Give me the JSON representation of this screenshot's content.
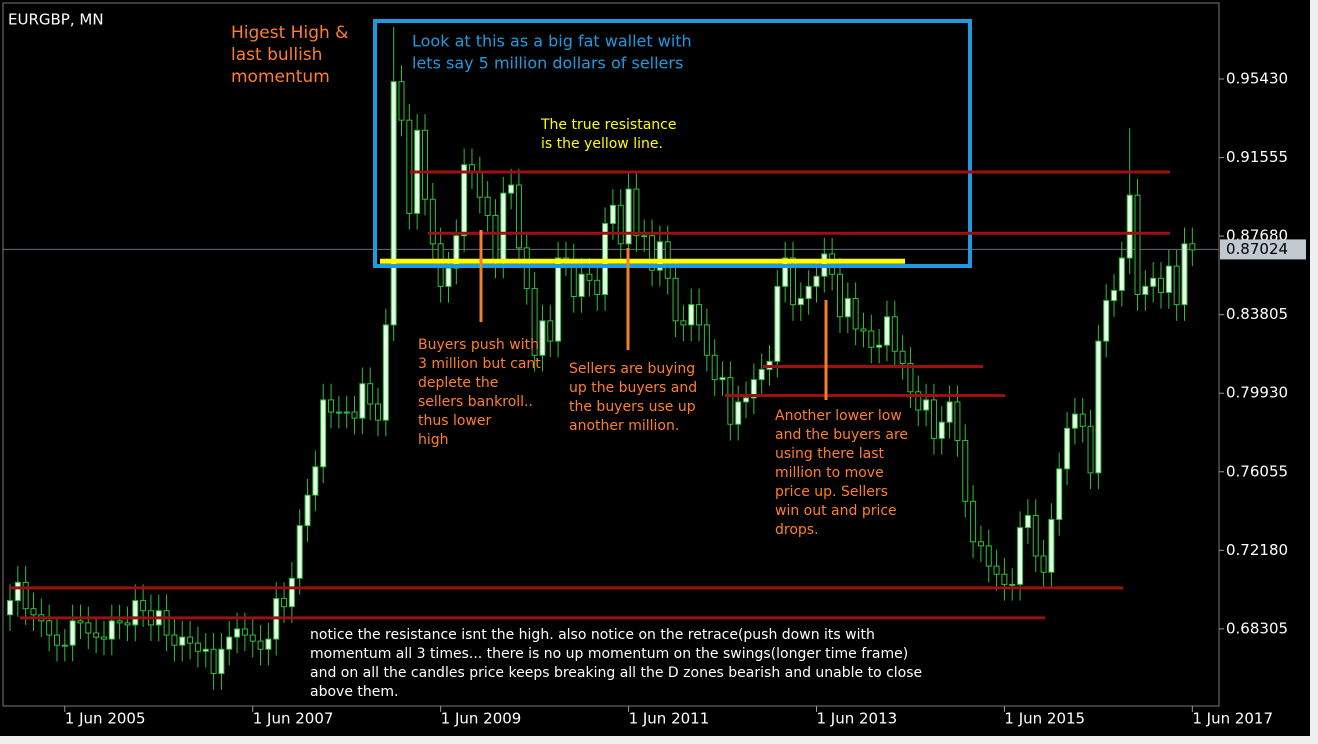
{
  "chart_data": {
    "type": "candlestick",
    "title": "EURGBP, MN",
    "x": [
      "1 Nov 2004",
      "1 Dec 2004",
      "1 Jan 2005",
      "1 Feb 2005",
      "1 Mar 2005",
      "1 Apr 2005",
      "1 May 2005",
      "1 Jun 2005",
      "1 Jul 2005",
      "1 Aug 2005",
      "1 Sep 2005",
      "1 Oct 2005",
      "1 Nov 2005",
      "1 Dec 2005",
      "1 Jan 2006",
      "1 Feb 2006",
      "1 Mar 2006",
      "1 Apr 2006",
      "1 May 2006",
      "1 Jun 2006",
      "1 Jul 2006",
      "1 Aug 2006",
      "1 Sep 2006",
      "1 Oct 2006",
      "1 Nov 2006",
      "1 Dec 2006",
      "1 Jan 2007",
      "1 Feb 2007",
      "1 Mar 2007",
      "1 Apr 2007",
      "1 May 2007",
      "1 Jun 2007",
      "1 Jul 2007",
      "1 Aug 2007",
      "1 Sep 2007",
      "1 Oct 2007",
      "1 Nov 2007",
      "1 Dec 2007",
      "1 Jan 2008",
      "1 Feb 2008",
      "1 Mar 2008",
      "1 Apr 2008",
      "1 May 2008",
      "1 Jun 2008",
      "1 Jul 2008",
      "1 Aug 2008",
      "1 Sep 2008",
      "1 Oct 2008",
      "1 Nov 2008",
      "1 Dec 2008",
      "1 Jan 2009",
      "1 Feb 2009",
      "1 Mar 2009",
      "1 Apr 2009",
      "1 May 2009",
      "1 Jun 2009",
      "1 Jul 2009",
      "1 Aug 2009",
      "1 Sep 2009",
      "1 Oct 2009",
      "1 Nov 2009",
      "1 Dec 2009",
      "1 Jan 2010",
      "1 Feb 2010",
      "1 Mar 2010",
      "1 Apr 2010",
      "1 May 2010",
      "1 Jun 2010",
      "1 Jul 2010",
      "1 Aug 2010",
      "1 Sep 2010",
      "1 Oct 2010",
      "1 Nov 2010",
      "1 Dec 2010",
      "1 Jan 2011",
      "1 Feb 2011",
      "1 Mar 2011",
      "1 Apr 2011",
      "1 May 2011",
      "1 Jun 2011",
      "1 Jul 2011",
      "1 Aug 2011",
      "1 Sep 2011",
      "1 Oct 2011",
      "1 Nov 2011",
      "1 Dec 2011",
      "1 Jan 2012",
      "1 Feb 2012",
      "1 Mar 2012",
      "1 Apr 2012",
      "1 May 2012",
      "1 Jun 2012",
      "1 Jul 2012",
      "1 Aug 2012",
      "1 Sep 2012",
      "1 Oct 2012",
      "1 Nov 2012",
      "1 Dec 2012",
      "1 Jan 2013",
      "1 Feb 2013",
      "1 Mar 2013",
      "1 Apr 2013",
      "1 May 2013",
      "1 Jun 2013",
      "1 Jul 2013",
      "1 Aug 2013",
      "1 Sep 2013",
      "1 Oct 2013",
      "1 Nov 2013",
      "1 Dec 2013",
      "1 Jan 2014",
      "1 Feb 2014",
      "1 Mar 2014",
      "1 Apr 2014",
      "1 May 2014",
      "1 Jun 2014",
      "1 Jul 2014",
      "1 Aug 2014",
      "1 Sep 2014",
      "1 Oct 2014",
      "1 Nov 2014",
      "1 Dec 2014",
      "1 Jan 2015",
      "1 Feb 2015",
      "1 Mar 2015",
      "1 Apr 2015",
      "1 May 2015",
      "1 Jun 2015",
      "1 Jul 2015",
      "1 Aug 2015",
      "1 Sep 2015",
      "1 Oct 2015",
      "1 Nov 2015",
      "1 Dec 2015",
      "1 Jan 2016",
      "1 Feb 2016",
      "1 Mar 2016",
      "1 Apr 2016",
      "1 May 2016",
      "1 Jun 2016",
      "1 Jul 2016",
      "1 Aug 2016",
      "1 Sep 2016",
      "1 Oct 2016",
      "1 Nov 2016",
      "1 Dec 2016",
      "1 Jan 2017",
      "1 Feb 2017",
      "1 Mar 2017",
      "1 Apr 2017",
      "1 May 2017",
      "1 Jun 2017"
    ],
    "open": [
      0.69,
      0.697,
      0.706,
      0.693,
      0.69,
      0.687,
      0.68,
      0.675,
      0.675,
      0.687,
      0.686,
      0.681,
      0.679,
      0.678,
      0.687,
      0.686,
      0.685,
      0.697,
      0.692,
      0.685,
      0.692,
      0.68,
      0.675,
      0.679,
      0.676,
      0.672,
      0.673,
      0.661,
      0.673,
      0.679,
      0.683,
      0.68,
      0.677,
      0.673,
      0.678,
      0.698,
      0.694,
      0.708,
      0.734,
      0.749,
      0.763,
      0.796,
      0.79,
      0.79,
      0.79,
      0.787,
      0.804,
      0.794,
      0.786,
      0.833,
      0.953,
      0.934,
      0.888,
      0.929,
      0.895,
      0.873,
      0.852,
      0.861,
      0.877,
      0.912,
      0.908,
      0.896,
      0.887,
      0.864,
      0.898,
      0.902,
      0.871,
      0.851,
      0.818,
      0.835,
      0.825,
      0.866,
      0.865,
      0.847,
      0.858,
      0.855,
      0.848,
      0.883,
      0.892,
      0.873,
      0.9,
      0.877,
      0.877,
      0.86,
      0.874,
      0.856,
      0.835,
      0.833,
      0.843,
      0.833,
      0.818,
      0.806,
      0.807,
      0.784,
      0.795,
      0.797,
      0.806,
      0.811,
      0.815,
      0.852,
      0.866,
      0.843,
      0.846,
      0.852,
      0.857,
      0.868,
      0.858,
      0.837,
      0.846,
      0.831,
      0.83,
      0.822,
      0.823,
      0.837,
      0.82,
      0.814,
      0.8,
      0.791,
      0.796,
      0.777,
      0.785,
      0.795,
      0.776,
      0.746,
      0.726,
      0.724,
      0.714,
      0.71,
      0.705,
      0.705,
      0.733,
      0.739,
      0.719,
      0.711,
      0.737,
      0.762,
      0.782,
      0.789,
      0.783,
      0.76,
      0.825,
      0.845,
      0.85,
      0.866,
      0.897,
      0.848,
      0.852,
      0.856,
      0.849,
      0.862,
      0.843,
      0.873
    ],
    "high": [
      0.705,
      0.714,
      0.714,
      0.701,
      0.698,
      0.695,
      0.688,
      0.683,
      0.695,
      0.695,
      0.694,
      0.689,
      0.687,
      0.695,
      0.695,
      0.694,
      0.705,
      0.705,
      0.7,
      0.7,
      0.7,
      0.688,
      0.687,
      0.687,
      0.684,
      0.681,
      0.681,
      0.681,
      0.687,
      0.691,
      0.691,
      0.688,
      0.685,
      0.686,
      0.706,
      0.706,
      0.716,
      0.742,
      0.757,
      0.771,
      0.804,
      0.804,
      0.798,
      0.798,
      0.798,
      0.812,
      0.812,
      0.802,
      0.841,
      0.98,
      0.961,
      0.942,
      0.937,
      0.937,
      0.903,
      0.881,
      0.869,
      0.885,
      0.92,
      0.92,
      0.916,
      0.904,
      0.895,
      0.906,
      0.91,
      0.91,
      0.879,
      0.859,
      0.843,
      0.843,
      0.874,
      0.874,
      0.873,
      0.866,
      0.866,
      0.863,
      0.891,
      0.9,
      0.9,
      0.908,
      0.908,
      0.885,
      0.885,
      0.882,
      0.882,
      0.864,
      0.843,
      0.851,
      0.851,
      0.841,
      0.826,
      0.815,
      0.815,
      0.803,
      0.805,
      0.814,
      0.819,
      0.823,
      0.86,
      0.874,
      0.874,
      0.854,
      0.86,
      0.865,
      0.876,
      0.876,
      0.866,
      0.854,
      0.854,
      0.839,
      0.838,
      0.831,
      0.845,
      0.845,
      0.828,
      0.822,
      0.808,
      0.804,
      0.804,
      0.793,
      0.803,
      0.803,
      0.784,
      0.754,
      0.734,
      0.732,
      0.722,
      0.718,
      0.713,
      0.741,
      0.747,
      0.747,
      0.727,
      0.745,
      0.77,
      0.79,
      0.797,
      0.797,
      0.791,
      0.833,
      0.853,
      0.858,
      0.874,
      0.93,
      0.905,
      0.86,
      0.864,
      0.864,
      0.87,
      0.87,
      0.881,
      0.881
    ],
    "low": [
      0.682,
      0.689,
      0.685,
      0.682,
      0.679,
      0.672,
      0.667,
      0.667,
      0.667,
      0.678,
      0.673,
      0.671,
      0.67,
      0.67,
      0.678,
      0.677,
      0.677,
      0.684,
      0.677,
      0.677,
      0.672,
      0.667,
      0.667,
      0.668,
      0.664,
      0.664,
      0.653,
      0.653,
      0.665,
      0.671,
      0.672,
      0.669,
      0.665,
      0.665,
      0.67,
      0.686,
      0.686,
      0.7,
      0.726,
      0.741,
      0.755,
      0.782,
      0.782,
      0.782,
      0.779,
      0.779,
      0.786,
      0.778,
      0.778,
      0.825,
      0.926,
      0.88,
      0.88,
      0.887,
      0.865,
      0.844,
      0.844,
      0.853,
      0.869,
      0.9,
      0.888,
      0.879,
      0.856,
      0.856,
      0.89,
      0.863,
      0.843,
      0.81,
      0.81,
      0.817,
      0.817,
      0.857,
      0.839,
      0.839,
      0.847,
      0.84,
      0.84,
      0.875,
      0.865,
      0.865,
      0.869,
      0.869,
      0.852,
      0.852,
      0.848,
      0.827,
      0.825,
      0.825,
      0.825,
      0.81,
      0.798,
      0.798,
      0.776,
      0.776,
      0.787,
      0.789,
      0.798,
      0.803,
      0.807,
      0.844,
      0.835,
      0.835,
      0.838,
      0.844,
      0.849,
      0.85,
      0.829,
      0.829,
      0.823,
      0.822,
      0.814,
      0.814,
      0.815,
      0.812,
      0.806,
      0.792,
      0.783,
      0.783,
      0.769,
      0.769,
      0.777,
      0.768,
      0.738,
      0.718,
      0.716,
      0.706,
      0.702,
      0.697,
      0.697,
      0.697,
      0.725,
      0.711,
      0.703,
      0.703,
      0.729,
      0.754,
      0.774,
      0.775,
      0.752,
      0.752,
      0.817,
      0.837,
      0.842,
      0.858,
      0.84,
      0.84,
      0.844,
      0.841,
      0.841,
      0.835,
      0.835,
      0.862
    ],
    "close": [
      0.697,
      0.706,
      0.693,
      0.69,
      0.687,
      0.68,
      0.675,
      0.675,
      0.687,
      0.686,
      0.681,
      0.679,
      0.678,
      0.687,
      0.686,
      0.685,
      0.697,
      0.692,
      0.685,
      0.692,
      0.68,
      0.675,
      0.679,
      0.676,
      0.672,
      0.673,
      0.661,
      0.673,
      0.679,
      0.683,
      0.68,
      0.677,
      0.673,
      0.678,
      0.698,
      0.694,
      0.708,
      0.734,
      0.749,
      0.763,
      0.796,
      0.79,
      0.79,
      0.79,
      0.787,
      0.804,
      0.794,
      0.786,
      0.833,
      0.953,
      0.934,
      0.888,
      0.929,
      0.895,
      0.873,
      0.852,
      0.861,
      0.877,
      0.912,
      0.908,
      0.896,
      0.887,
      0.864,
      0.898,
      0.902,
      0.871,
      0.851,
      0.818,
      0.835,
      0.825,
      0.866,
      0.865,
      0.847,
      0.858,
      0.855,
      0.848,
      0.883,
      0.892,
      0.873,
      0.9,
      0.877,
      0.877,
      0.86,
      0.874,
      0.856,
      0.835,
      0.833,
      0.843,
      0.833,
      0.818,
      0.806,
      0.807,
      0.784,
      0.795,
      0.797,
      0.806,
      0.811,
      0.815,
      0.852,
      0.866,
      0.843,
      0.846,
      0.852,
      0.857,
      0.868,
      0.858,
      0.837,
      0.846,
      0.831,
      0.83,
      0.822,
      0.823,
      0.837,
      0.82,
      0.814,
      0.8,
      0.791,
      0.796,
      0.777,
      0.785,
      0.795,
      0.776,
      0.746,
      0.726,
      0.724,
      0.714,
      0.71,
      0.705,
      0.705,
      0.733,
      0.739,
      0.719,
      0.711,
      0.737,
      0.762,
      0.782,
      0.789,
      0.783,
      0.76,
      0.825,
      0.845,
      0.85,
      0.866,
      0.897,
      0.848,
      0.852,
      0.856,
      0.849,
      0.862,
      0.843,
      0.873,
      0.87
    ],
    "up_color": "#e6ffe6",
    "down_color": "#000000",
    "wick_color": "#2fbf3a",
    "ylim": [
      0.645,
      0.9918
    ],
    "yticks": [
      {
        "value": 0.9543,
        "label": "0.95430"
      },
      {
        "value": 0.91555,
        "label": "0.91555"
      },
      {
        "value": 0.8768,
        "label": "0.87680"
      },
      {
        "value": 0.83805,
        "label": "0.83805"
      },
      {
        "value": 0.7993,
        "label": "0.79930"
      },
      {
        "value": 0.76055,
        "label": "0.76055"
      },
      {
        "value": 0.7218,
        "label": "0.72180"
      },
      {
        "value": 0.68305,
        "label": "0.68305"
      }
    ],
    "current_price": {
      "value": 0.87024,
      "label": "0.87024"
    },
    "xticks": [
      "1 Jun 2005",
      "1 Jun 2007",
      "1 Jun 2009",
      "1 Jun 2011",
      "1 Jun 2013",
      "1 Jun 2015",
      "1 Jun 2017"
    ],
    "levels": [
      {
        "value": 0.9084,
        "color": "#9b1010"
      },
      {
        "value": 0.8782,
        "color": "#9b1010"
      },
      {
        "value": 0.8125,
        "color": "#9b1010"
      },
      {
        "value": 0.7982,
        "color": "#9b1010"
      },
      {
        "value": 0.7033,
        "color": "#9b1010"
      },
      {
        "value": 0.6885,
        "color": "#9b1010"
      },
      {
        "value": 0.8644,
        "color": "#ffff00"
      }
    ],
    "annotations": [
      {
        "lines": [
          "Higest High &",
          "last bullish",
          "momentum"
        ],
        "color": "#ff7f2a"
      },
      {
        "lines": [
          "Look at this as a big fat wallet with",
          "lets say 5 million dollars of sellers"
        ],
        "color": "#1e9be0"
      },
      {
        "lines": [
          "The true resistance",
          "is the yellow line."
        ],
        "color": "#ffff00"
      },
      {
        "lines": [
          "Buyers push with",
          "3 million but cant",
          "deplete the",
          " sellers bankroll..",
          "thus lower",
          "high"
        ],
        "color": "#ff7f2a"
      },
      {
        "lines": [
          "Sellers are buying",
          "up the buyers and",
          "the buyers use up",
          "another million."
        ],
        "color": "#ff7f2a"
      },
      {
        "lines": [
          "Another lower low",
          "and the buyers are",
          "using there last",
          "million to move",
          "price up. Sellers",
          "win out and price",
          "drops."
        ],
        "color": "#ff7f2a"
      },
      {
        "lines": [
          "notice the resistance isnt the high. also notice on the retrace(push down its with",
          "momentum all 3 times... there is no up momentum on the swings(longer time frame)",
          "and on all the candles price keeps breaking all the D zones bearish and unable to close",
          "above them."
        ],
        "color": "#ffffff"
      }
    ]
  }
}
